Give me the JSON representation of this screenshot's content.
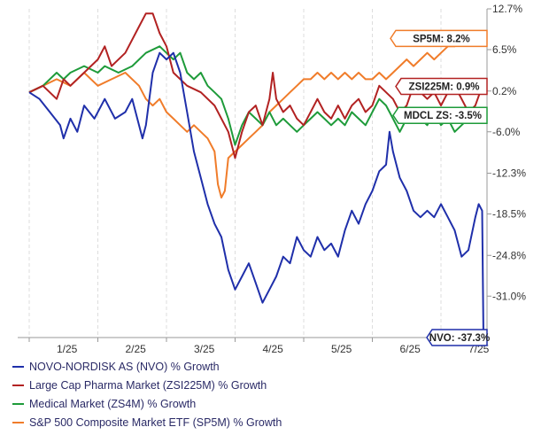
{
  "chart_data": {
    "type": "line",
    "x_ticks": [
      "1/25",
      "2/25",
      "3/25",
      "4/25",
      "5/25",
      "6/25",
      "7/25"
    ],
    "y_ticks": [
      "12.7%",
      "6.5%",
      "0.2%",
      "-6.0%",
      "-12.3%",
      "-18.5%",
      "-24.8%",
      "-31.0%"
    ],
    "y_tick_values": [
      12.7,
      6.5,
      0.2,
      -6.0,
      -12.3,
      -18.5,
      -24.8,
      -31.0
    ],
    "ylim": [
      -37.3,
      12.7
    ],
    "x_range": [
      0,
      7
    ],
    "series": [
      {
        "name": "NOVO-NORDISK AS (NVO) % Growth",
        "end_label": "NVO: -37.3%",
        "color": "#1f2faa",
        "points": [
          [
            0.0,
            0
          ],
          [
            0.15,
            -1
          ],
          [
            0.3,
            -3
          ],
          [
            0.45,
            -5
          ],
          [
            0.5,
            -7
          ],
          [
            0.6,
            -4
          ],
          [
            0.7,
            -6
          ],
          [
            0.8,
            -2
          ],
          [
            0.95,
            -4
          ],
          [
            1.1,
            -1
          ],
          [
            1.25,
            -4
          ],
          [
            1.4,
            -3
          ],
          [
            1.5,
            -1
          ],
          [
            1.6,
            -5
          ],
          [
            1.65,
            -7
          ],
          [
            1.7,
            -5
          ],
          [
            1.8,
            3
          ],
          [
            1.9,
            6
          ],
          [
            2.0,
            5
          ],
          [
            2.1,
            6
          ],
          [
            2.2,
            3
          ],
          [
            2.3,
            -3
          ],
          [
            2.4,
            -9
          ],
          [
            2.5,
            -13
          ],
          [
            2.6,
            -17
          ],
          [
            2.7,
            -20
          ],
          [
            2.8,
            -22
          ],
          [
            2.9,
            -27
          ],
          [
            3.0,
            -30
          ],
          [
            3.1,
            -28
          ],
          [
            3.2,
            -26
          ],
          [
            3.3,
            -29
          ],
          [
            3.4,
            -32
          ],
          [
            3.5,
            -30
          ],
          [
            3.6,
            -28
          ],
          [
            3.7,
            -25
          ],
          [
            3.8,
            -26
          ],
          [
            3.9,
            -22
          ],
          [
            4.0,
            -24
          ],
          [
            4.1,
            -25
          ],
          [
            4.2,
            -22
          ],
          [
            4.3,
            -24
          ],
          [
            4.4,
            -23
          ],
          [
            4.5,
            -25
          ],
          [
            4.6,
            -21
          ],
          [
            4.7,
            -18
          ],
          [
            4.8,
            -20
          ],
          [
            4.9,
            -17
          ],
          [
            5.0,
            -15
          ],
          [
            5.1,
            -12
          ],
          [
            5.2,
            -11
          ],
          [
            5.25,
            -6
          ],
          [
            5.3,
            -9
          ],
          [
            5.4,
            -13
          ],
          [
            5.5,
            -15
          ],
          [
            5.6,
            -18
          ],
          [
            5.7,
            -19
          ],
          [
            5.8,
            -18
          ],
          [
            5.9,
            -19
          ],
          [
            6.0,
            -17
          ],
          [
            6.1,
            -19
          ],
          [
            6.2,
            -21
          ],
          [
            6.3,
            -25
          ],
          [
            6.4,
            -24
          ],
          [
            6.5,
            -19
          ],
          [
            6.55,
            -17
          ],
          [
            6.6,
            -18
          ],
          [
            6.62,
            -37.3
          ]
        ]
      },
      {
        "name": "Large Cap Pharma Market (ZSI225M) % Growth",
        "end_label": "ZSI225M: 0.9%",
        "color": "#b22222",
        "points": [
          [
            0.0,
            0
          ],
          [
            0.2,
            1
          ],
          [
            0.4,
            -1
          ],
          [
            0.5,
            2
          ],
          [
            0.6,
            1
          ],
          [
            0.8,
            3
          ],
          [
            1.0,
            5
          ],
          [
            1.1,
            7
          ],
          [
            1.2,
            4
          ],
          [
            1.4,
            6
          ],
          [
            1.6,
            10
          ],
          [
            1.7,
            12
          ],
          [
            1.8,
            12
          ],
          [
            1.9,
            9
          ],
          [
            2.0,
            7
          ],
          [
            2.1,
            3
          ],
          [
            2.3,
            1
          ],
          [
            2.5,
            0
          ],
          [
            2.7,
            -2
          ],
          [
            2.9,
            -6
          ],
          [
            3.0,
            -10
          ],
          [
            3.1,
            -6
          ],
          [
            3.2,
            -3
          ],
          [
            3.3,
            -2
          ],
          [
            3.4,
            -5
          ],
          [
            3.5,
            -1
          ],
          [
            3.55,
            3
          ],
          [
            3.6,
            -1
          ],
          [
            3.7,
            -3
          ],
          [
            3.8,
            -2
          ],
          [
            3.9,
            -4
          ],
          [
            4.0,
            -5
          ],
          [
            4.1,
            -3
          ],
          [
            4.2,
            -1
          ],
          [
            4.3,
            -3
          ],
          [
            4.4,
            -4
          ],
          [
            4.5,
            -2
          ],
          [
            4.6,
            -4
          ],
          [
            4.7,
            -2
          ],
          [
            4.8,
            -1
          ],
          [
            4.9,
            -3
          ],
          [
            5.0,
            -2
          ],
          [
            5.1,
            1
          ],
          [
            5.2,
            0
          ],
          [
            5.3,
            -1
          ],
          [
            5.4,
            -3
          ],
          [
            5.5,
            -2
          ],
          [
            5.6,
            1
          ],
          [
            5.7,
            0
          ],
          [
            5.8,
            -1
          ],
          [
            5.9,
            0
          ],
          [
            6.0,
            -2
          ],
          [
            6.1,
            0
          ],
          [
            6.2,
            1
          ],
          [
            6.3,
            -1
          ],
          [
            6.4,
            -3
          ],
          [
            6.5,
            -2
          ],
          [
            6.6,
            0.9
          ]
        ]
      },
      {
        "name": "Medical Market (ZS4M) % Growth",
        "end_label": "MDCL ZS: -3.5%",
        "color": "#1e9b3a",
        "points": [
          [
            0.0,
            0
          ],
          [
            0.2,
            1
          ],
          [
            0.4,
            3
          ],
          [
            0.5,
            2
          ],
          [
            0.6,
            3
          ],
          [
            0.8,
            4
          ],
          [
            1.0,
            3
          ],
          [
            1.1,
            4
          ],
          [
            1.3,
            3
          ],
          [
            1.5,
            4
          ],
          [
            1.7,
            6
          ],
          [
            1.9,
            7
          ],
          [
            2.0,
            6
          ],
          [
            2.1,
            5
          ],
          [
            2.2,
            6
          ],
          [
            2.3,
            3
          ],
          [
            2.4,
            2
          ],
          [
            2.5,
            3
          ],
          [
            2.6,
            1
          ],
          [
            2.7,
            0
          ],
          [
            2.8,
            -1
          ],
          [
            2.9,
            -4
          ],
          [
            3.0,
            -8
          ],
          [
            3.1,
            -5
          ],
          [
            3.2,
            -3
          ],
          [
            3.3,
            -4
          ],
          [
            3.4,
            -5
          ],
          [
            3.5,
            -3
          ],
          [
            3.6,
            -5
          ],
          [
            3.7,
            -4
          ],
          [
            3.8,
            -5
          ],
          [
            3.9,
            -6
          ],
          [
            4.0,
            -5
          ],
          [
            4.1,
            -4
          ],
          [
            4.2,
            -3
          ],
          [
            4.3,
            -4
          ],
          [
            4.4,
            -5
          ],
          [
            4.5,
            -4
          ],
          [
            4.6,
            -5
          ],
          [
            4.7,
            -3
          ],
          [
            4.8,
            -4
          ],
          [
            4.9,
            -5
          ],
          [
            5.0,
            -3
          ],
          [
            5.1,
            -1
          ],
          [
            5.2,
            -2
          ],
          [
            5.3,
            -4
          ],
          [
            5.4,
            -6
          ],
          [
            5.5,
            -4
          ],
          [
            5.6,
            -3
          ],
          [
            5.7,
            -4
          ],
          [
            5.8,
            -5
          ],
          [
            5.9,
            -3
          ],
          [
            6.0,
            -5
          ],
          [
            6.1,
            -4
          ],
          [
            6.2,
            -6
          ],
          [
            6.3,
            -5
          ],
          [
            6.4,
            -4
          ],
          [
            6.5,
            -3
          ],
          [
            6.6,
            -3.5
          ]
        ]
      },
      {
        "name": "S&P 500 Composite Market ETF (SP5M) % Growth",
        "end_label": "SP5M: 8.2%",
        "color": "#f07c2a",
        "points": [
          [
            0.0,
            0
          ],
          [
            0.2,
            1
          ],
          [
            0.4,
            2
          ],
          [
            0.6,
            1
          ],
          [
            0.8,
            3
          ],
          [
            1.0,
            1
          ],
          [
            1.2,
            2
          ],
          [
            1.4,
            3
          ],
          [
            1.6,
            1
          ],
          [
            1.7,
            -1
          ],
          [
            1.8,
            -2
          ],
          [
            1.9,
            -1
          ],
          [
            2.0,
            -3
          ],
          [
            2.1,
            -4
          ],
          [
            2.2,
            -5
          ],
          [
            2.3,
            -6
          ],
          [
            2.4,
            -5
          ],
          [
            2.5,
            -6
          ],
          [
            2.6,
            -7
          ],
          [
            2.7,
            -9
          ],
          [
            2.75,
            -14
          ],
          [
            2.8,
            -16
          ],
          [
            2.85,
            -15
          ],
          [
            2.9,
            -10
          ],
          [
            3.0,
            -9
          ],
          [
            3.1,
            -8
          ],
          [
            3.2,
            -7
          ],
          [
            3.3,
            -6
          ],
          [
            3.4,
            -5
          ],
          [
            3.5,
            -3
          ],
          [
            3.6,
            -2
          ],
          [
            3.7,
            -1
          ],
          [
            3.8,
            0
          ],
          [
            3.9,
            1
          ],
          [
            4.0,
            2
          ],
          [
            4.1,
            2
          ],
          [
            4.2,
            3
          ],
          [
            4.3,
            2
          ],
          [
            4.4,
            3
          ],
          [
            4.5,
            2
          ],
          [
            4.6,
            3
          ],
          [
            4.7,
            2
          ],
          [
            4.8,
            3
          ],
          [
            4.9,
            2
          ],
          [
            5.0,
            2
          ],
          [
            5.1,
            3
          ],
          [
            5.2,
            2
          ],
          [
            5.3,
            3
          ],
          [
            5.4,
            4
          ],
          [
            5.5,
            5
          ],
          [
            5.6,
            4
          ],
          [
            5.7,
            5
          ],
          [
            5.8,
            6
          ],
          [
            5.9,
            5
          ],
          [
            6.0,
            6
          ],
          [
            6.1,
            7
          ],
          [
            6.2,
            7
          ],
          [
            6.3,
            8
          ],
          [
            6.4,
            8
          ],
          [
            6.5,
            8
          ],
          [
            6.6,
            8.2
          ]
        ]
      }
    ],
    "legend_placement": "bottom-left",
    "grid": "vertical dashed",
    "axis_side": "right"
  }
}
